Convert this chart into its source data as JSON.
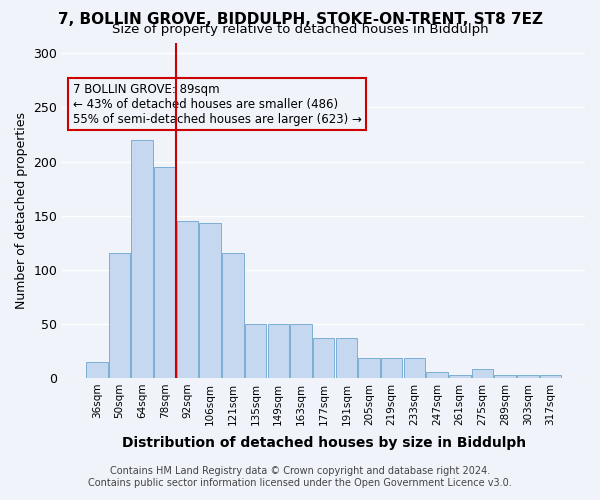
{
  "title_line1": "7, BOLLIN GROVE, BIDDULPH, STOKE-ON-TRENT, ST8 7EZ",
  "title_line2": "Size of property relative to detached houses in Biddulph",
  "xlabel": "Distribution of detached houses by size in Biddulph",
  "ylabel": "Number of detached properties",
  "categories": [
    "36sqm",
    "50sqm",
    "64sqm",
    "78sqm",
    "92sqm",
    "106sqm",
    "121sqm",
    "135sqm",
    "149sqm",
    "163sqm",
    "177sqm",
    "191sqm",
    "205sqm",
    "219sqm",
    "233sqm",
    "247sqm",
    "261sqm",
    "275sqm",
    "289sqm",
    "303sqm",
    "317sqm"
  ],
  "values": [
    15,
    115,
    220,
    195,
    145,
    143,
    115,
    50,
    50,
    50,
    37,
    37,
    18,
    18,
    18,
    5,
    3,
    8,
    3,
    3,
    3
  ],
  "bar_color": "#c5d8f0",
  "bar_edge_color": "#7bafd4",
  "vline_x": 4,
  "vline_color": "#cc0000",
  "annotation_text": "7 BOLLIN GROVE: 89sqm\n← 43% of detached houses are smaller (486)\n55% of semi-detached houses are larger (623) →",
  "annotation_box_edge": "#cc0000",
  "ylim": [
    0,
    310
  ],
  "yticks": [
    0,
    50,
    100,
    150,
    200,
    250,
    300
  ],
  "footnote1": "Contains HM Land Registry data © Crown copyright and database right 2024.",
  "footnote2": "Contains public sector information licensed under the Open Government Licence v3.0.",
  "bg_color": "#f0f4fa",
  "grid_color": "#ffffff"
}
